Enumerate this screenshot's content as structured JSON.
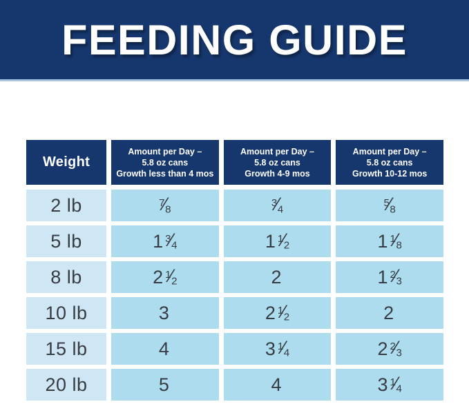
{
  "banner": {
    "title": "FEEDING GUIDE"
  },
  "colors": {
    "navy": "#16376d",
    "banner_underline": "#a9c7e2",
    "weight_cell_bg": "#cfe7f4",
    "amount_cell_bg": "#addcef",
    "cell_text": "#373c43",
    "header_text": "#ffffff"
  },
  "chart_data": {
    "type": "table",
    "title": "FEEDING GUIDE",
    "columns": [
      "Weight",
      "Amount per Day –\n5.8 oz cans\nGrowth less than 4 mos",
      "Amount per Day –\n5.8 oz cans\nGrowth 4-9 mos",
      "Amount per Day –\n5.8 oz cans\nGrowth 10-12 mos"
    ],
    "rows": [
      {
        "weight": "2 lb",
        "amounts": [
          "7/8",
          "3/4",
          "5/8"
        ]
      },
      {
        "weight": "5 lb",
        "amounts": [
          "1 3/4",
          "1 1/2",
          "1 1/8"
        ]
      },
      {
        "weight": "8 lb",
        "amounts": [
          "2 1/2",
          "2",
          "1 2/3"
        ]
      },
      {
        "weight": "10 lb",
        "amounts": [
          "3",
          "2 1/2",
          "2"
        ]
      },
      {
        "weight": "15 lb",
        "amounts": [
          "4",
          "3 1/4",
          "2 2/3"
        ]
      },
      {
        "weight": "20 lb",
        "amounts": [
          "5",
          "4",
          "3 1/4"
        ]
      }
    ]
  }
}
